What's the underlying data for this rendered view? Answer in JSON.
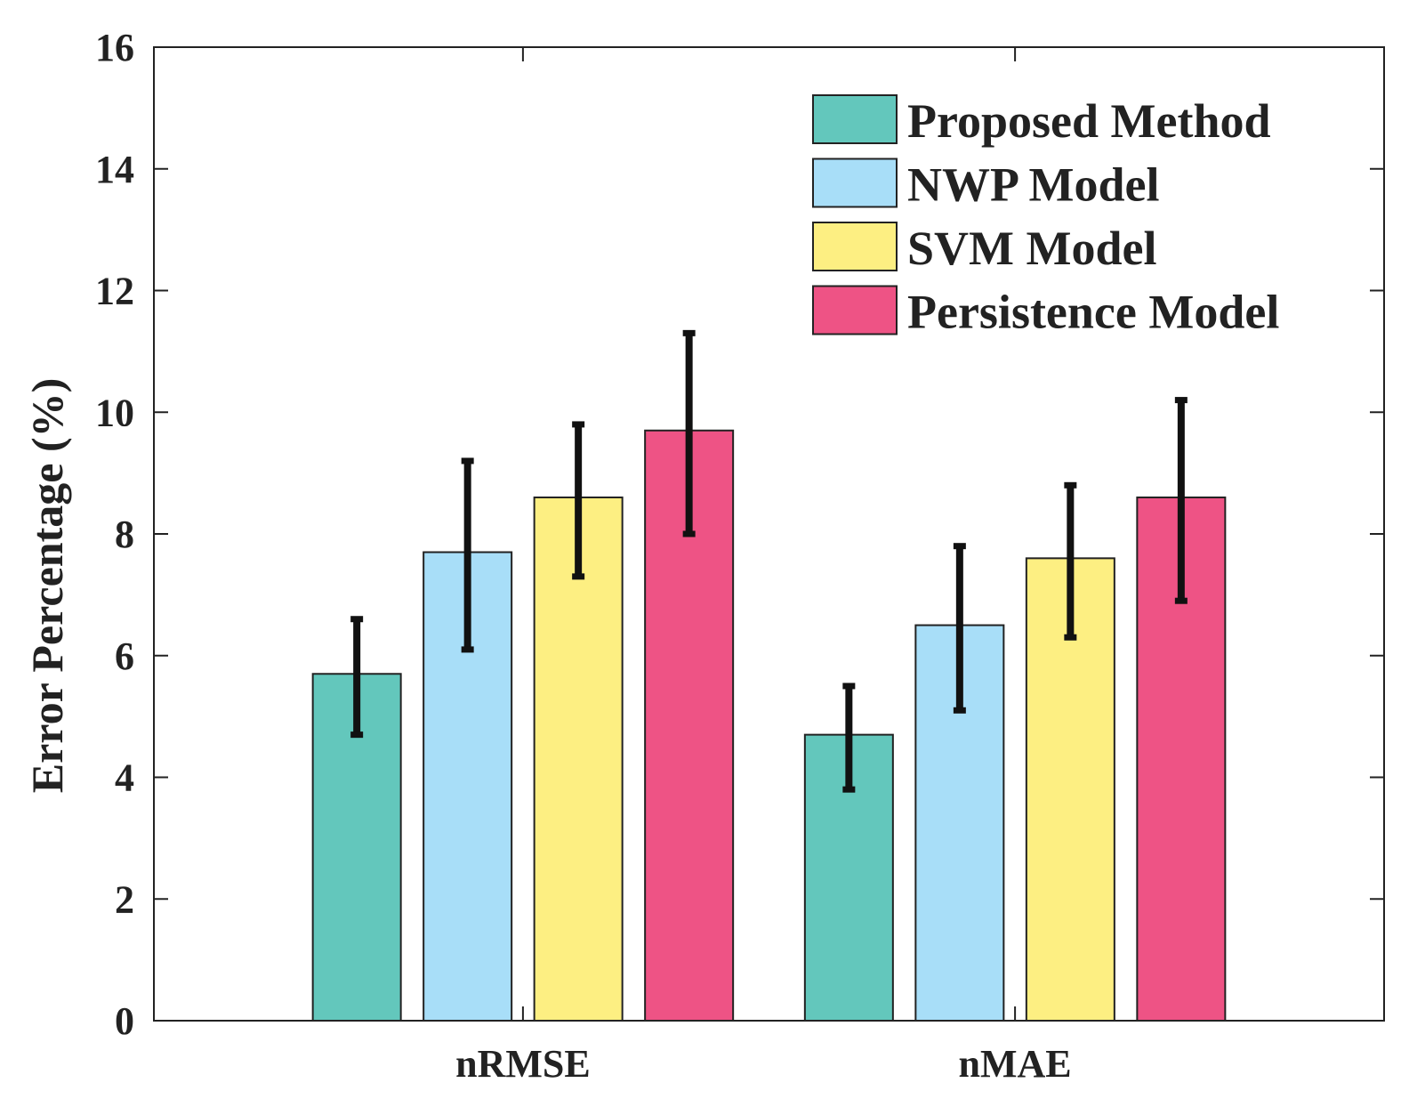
{
  "chart_data": {
    "type": "bar",
    "title": "",
    "xlabel": "",
    "ylabel": "Error Percentage (%)",
    "ylim": [
      0,
      16
    ],
    "yticks": [
      "0",
      "2",
      "4",
      "6",
      "8",
      "10",
      "12",
      "14",
      "16"
    ],
    "categories": [
      "nRMSE",
      "nMAE"
    ],
    "legend_position": "top-right",
    "grid": false,
    "series": [
      {
        "name": "Proposed Method",
        "color": "#63c7bc",
        "values": [
          5.7,
          4.7
        ],
        "errors_low": [
          4.7,
          3.8
        ],
        "errors_high": [
          6.6,
          5.5
        ]
      },
      {
        "name": "NWP Model",
        "color": "#a8def8",
        "values": [
          7.7,
          6.5
        ],
        "errors_low": [
          6.1,
          5.1
        ],
        "errors_high": [
          9.2,
          7.8
        ]
      },
      {
        "name": "SVM Model",
        "color": "#fdef82",
        "values": [
          8.6,
          7.6
        ],
        "errors_low": [
          7.3,
          6.3
        ],
        "errors_high": [
          9.8,
          8.8
        ]
      },
      {
        "name": "Persistence Model",
        "color": "#ee5385",
        "values": [
          9.7,
          8.6
        ],
        "errors_low": [
          8.0,
          6.9
        ],
        "errors_high": [
          11.3,
          10.2
        ]
      }
    ]
  }
}
